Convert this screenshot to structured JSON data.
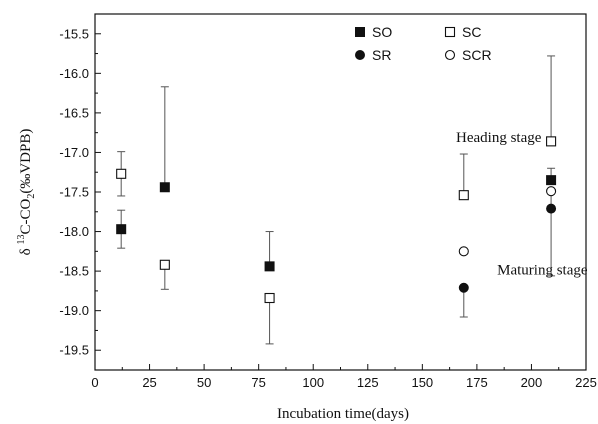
{
  "chart_data": {
    "type": "scatter",
    "xlabel": "Incubation time(days)",
    "ylabel_parts": {
      "prefix": "δ ",
      "sup": "13",
      "mid": "C-CO",
      "sub": "2",
      "suffix": "(‰VDPB)"
    },
    "xlim": [
      0,
      225
    ],
    "ylim": [
      -19.75,
      -15.25
    ],
    "x_ticks": [
      0,
      25,
      50,
      75,
      100,
      125,
      150,
      175,
      200,
      225
    ],
    "y_ticks": [
      -15.5,
      -16.0,
      -16.5,
      -17.0,
      -17.5,
      -18.0,
      -18.5,
      -19.0,
      -19.5
    ],
    "grid": false,
    "legend_position": "top-right",
    "series": [
      {
        "name": "SO",
        "marker": "filled-square",
        "points": [
          {
            "x": 12,
            "y": -17.97,
            "yerr_low": 0.24,
            "yerr_high": 0.24
          },
          {
            "x": 32,
            "y": -17.44,
            "yerr_low": 0.0,
            "yerr_high": 1.27
          },
          {
            "x": 80,
            "y": -18.44,
            "yerr_low": 0.0,
            "yerr_high": 0.44
          },
          {
            "x": 209,
            "y": -17.35,
            "yerr_low": 0.0,
            "yerr_high": 0.15
          }
        ]
      },
      {
        "name": "SC",
        "marker": "open-square",
        "points": [
          {
            "x": 12,
            "y": -17.27,
            "yerr_low": 0.28,
            "yerr_high": 0.28
          },
          {
            "x": 32,
            "y": -18.42,
            "yerr_low": 0.31,
            "yerr_high": 0.0
          },
          {
            "x": 80,
            "y": -18.84,
            "yerr_low": 0.58,
            "yerr_high": 0.0
          },
          {
            "x": 169,
            "y": -17.54,
            "yerr_low": 0.0,
            "yerr_high": 0.52
          },
          {
            "x": 209,
            "y": -16.86,
            "yerr_low": 0.0,
            "yerr_high": 1.08
          }
        ]
      },
      {
        "name": "SR",
        "marker": "filled-circle",
        "points": [
          {
            "x": 169,
            "y": -18.71,
            "yerr_low": 0.37,
            "yerr_high": 0.0
          },
          {
            "x": 209,
            "y": -17.71,
            "yerr_low": 0.0,
            "yerr_high": 0.0
          }
        ]
      },
      {
        "name": "SCR",
        "marker": "open-circle",
        "points": [
          {
            "x": 169,
            "y": -18.25,
            "yerr_low": 0.0,
            "yerr_high": 0.0
          },
          {
            "x": 209,
            "y": -17.49,
            "yerr_low": 1.07,
            "yerr_high": 0.0
          }
        ]
      }
    ],
    "annotations": [
      {
        "text": "Heading stage",
        "x": 185,
        "y": -16.87
      },
      {
        "text": "Maturing stage",
        "x": 205,
        "y": -18.54
      }
    ]
  }
}
